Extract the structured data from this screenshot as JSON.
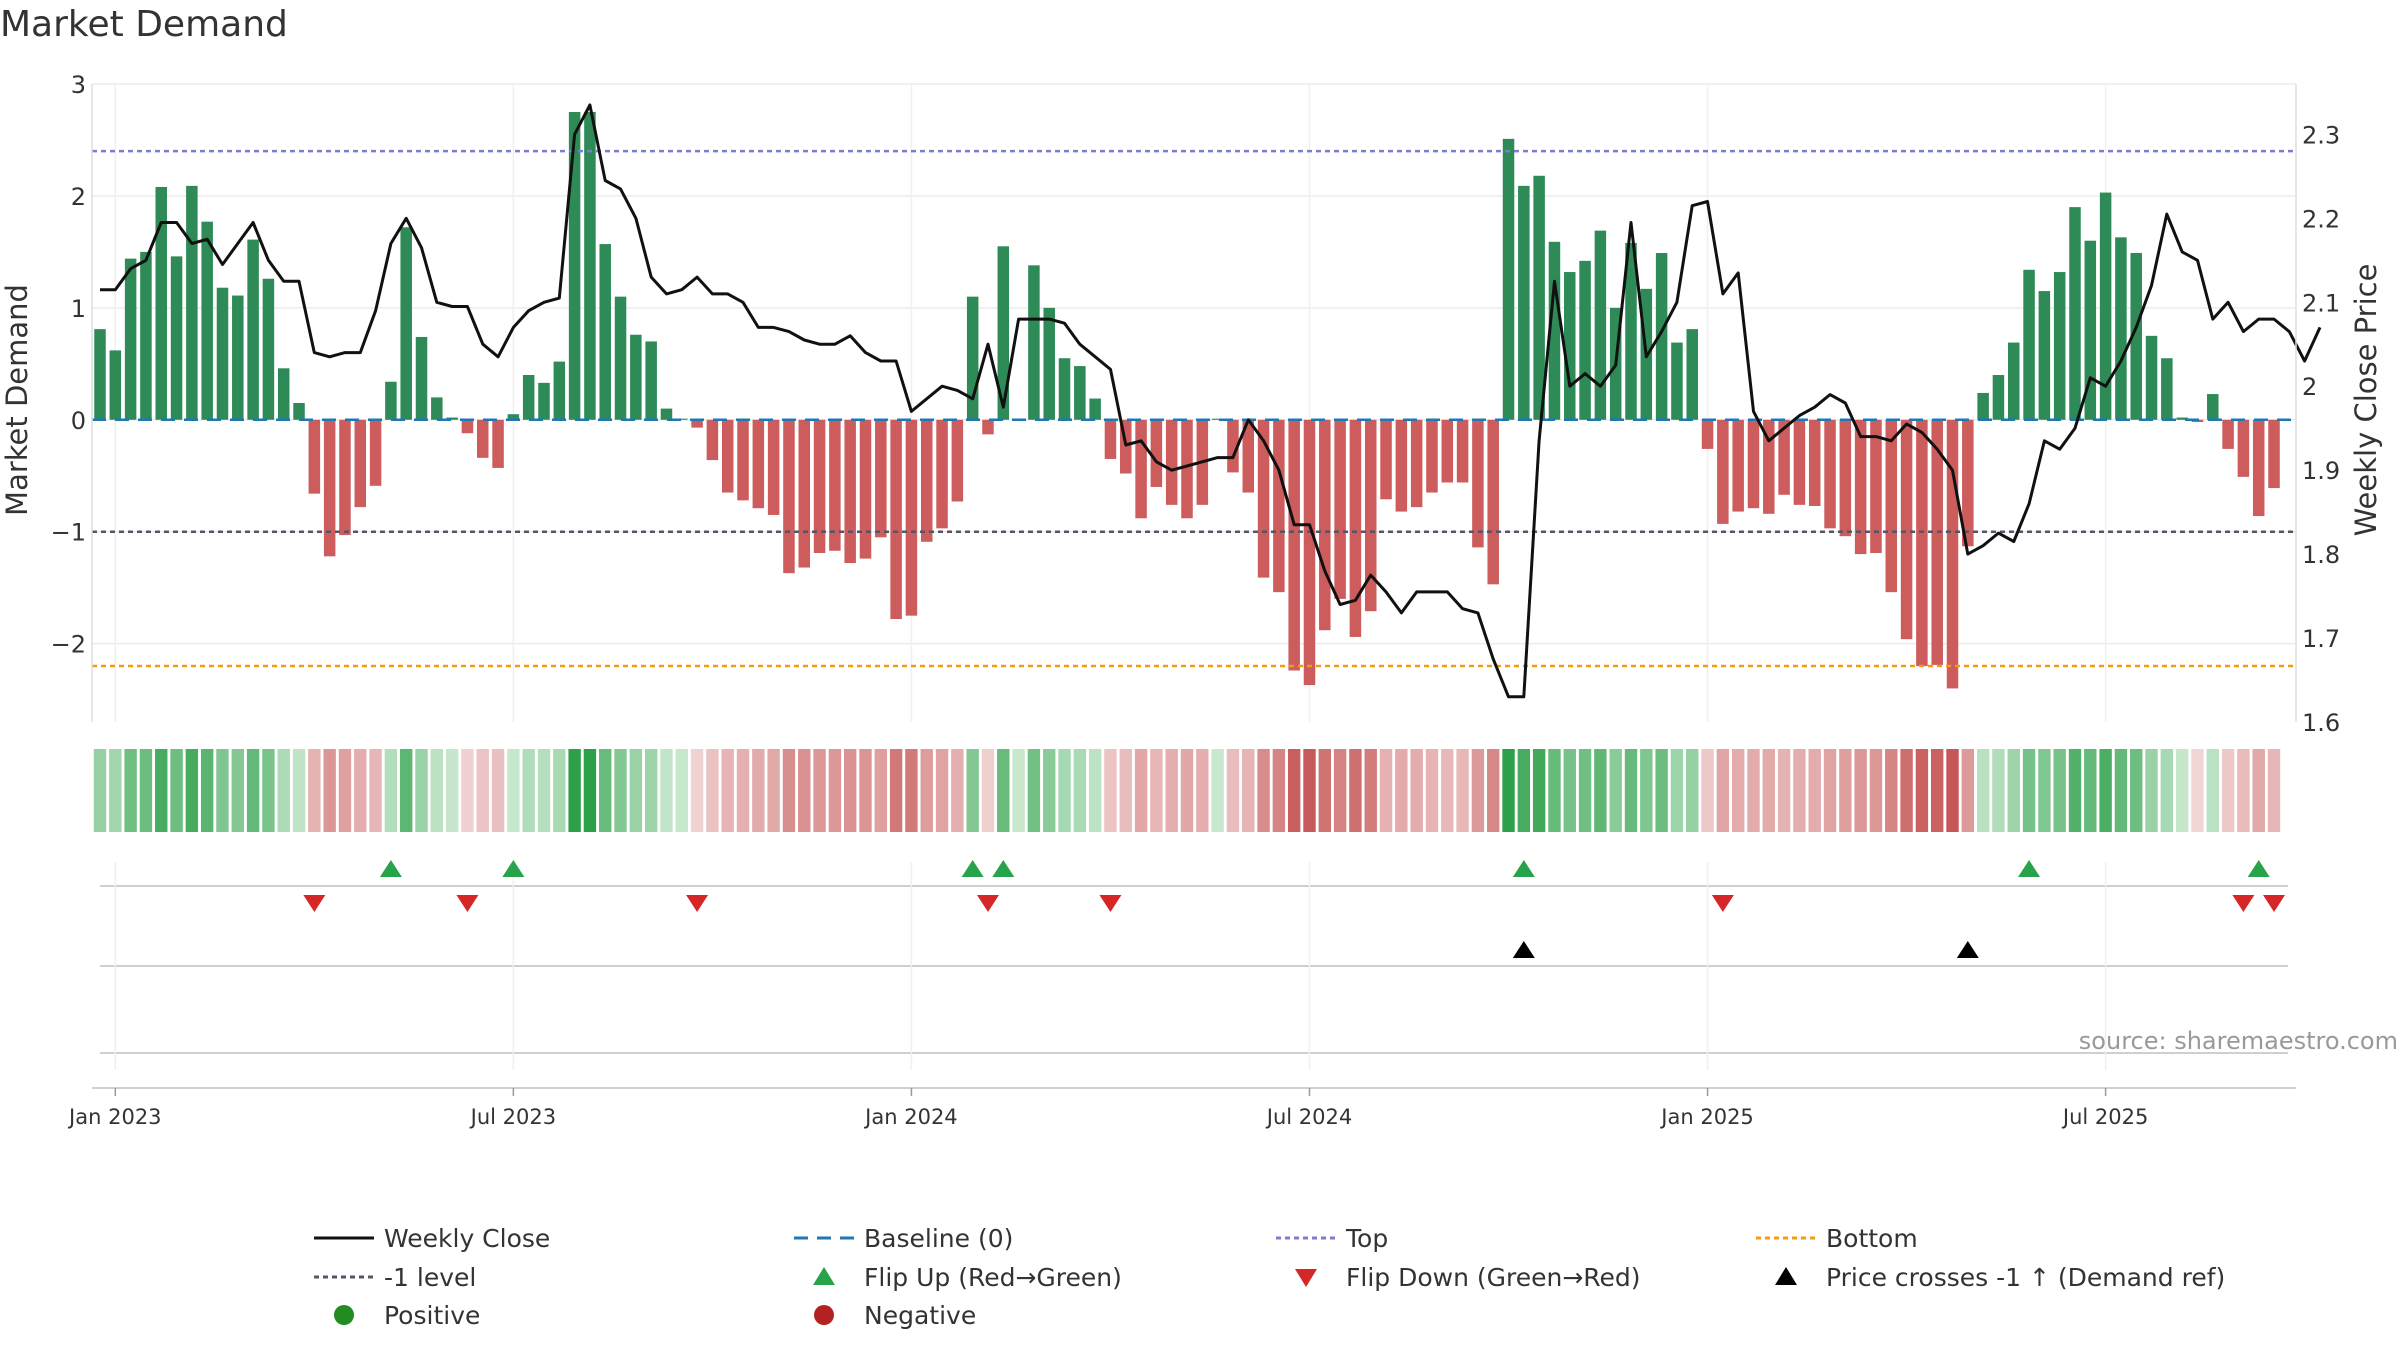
{
  "chart_data": {
    "type": "bar",
    "title": "Market Demand",
    "ylabel": "Market Demand",
    "y2label": "Weekly Close Price",
    "source": "source: sharemaestro.com",
    "ylim": [
      -2.7,
      3.0
    ],
    "y2lim": [
      1.6,
      2.36
    ],
    "yticks": [
      {
        "v": 3,
        "label": "3"
      },
      {
        "v": 2,
        "label": "2"
      },
      {
        "v": 1,
        "label": "1"
      },
      {
        "v": 0,
        "label": "0"
      },
      {
        "v": -1,
        "label": "−1"
      },
      {
        "v": -2,
        "label": "−2"
      }
    ],
    "y2ticks": [
      {
        "v": 2.3,
        "label": "2.3"
      },
      {
        "v": 2.2,
        "label": "2.2"
      },
      {
        "v": 2.1,
        "label": "2.1"
      },
      {
        "v": 2.0,
        "label": "2"
      },
      {
        "v": 1.9,
        "label": "1.9"
      },
      {
        "v": 1.8,
        "label": "1.8"
      },
      {
        "v": 1.7,
        "label": "1.7"
      },
      {
        "v": 1.6,
        "label": "1.6"
      }
    ],
    "xticks": [
      {
        "w": 1,
        "label": "Jan 2023"
      },
      {
        "w": 27,
        "label": "Jul 2023"
      },
      {
        "w": 53,
        "label": "Jan 2024"
      },
      {
        "w": 79,
        "label": "Jul 2024"
      },
      {
        "w": 105,
        "label": "Jan 2025"
      },
      {
        "w": 131,
        "label": "Jul 2025"
      }
    ],
    "levels": {
      "top": 2.4,
      "baseline": 0,
      "minus_one": -1,
      "bottom": -2.2
    },
    "demand": [
      0.81,
      0.62,
      1.44,
      1.5,
      2.08,
      1.46,
      2.09,
      1.77,
      1.18,
      1.11,
      1.61,
      1.26,
      0.46,
      0.15,
      -0.66,
      -1.22,
      -1.03,
      -0.78,
      -0.59,
      0.34,
      1.72,
      0.74,
      0.2,
      0.02,
      -0.12,
      -0.34,
      -0.43,
      0.05,
      0.4,
      0.33,
      0.52,
      2.75,
      2.75,
      1.57,
      1.1,
      0.76,
      0.7,
      0.1,
      0.01,
      -0.07,
      -0.36,
      -0.65,
      -0.72,
      -0.79,
      -0.85,
      -1.37,
      -1.32,
      -1.19,
      -1.17,
      -1.28,
      -1.24,
      -1.05,
      -1.78,
      -1.75,
      -1.09,
      -0.97,
      -0.73,
      1.1,
      -0.13,
      1.55,
      0.01,
      1.38,
      1.0,
      0.55,
      0.48,
      0.19,
      -0.35,
      -0.48,
      -0.88,
      -0.6,
      -0.76,
      -0.88,
      -0.76,
      0.01,
      -0.47,
      -0.65,
      -1.41,
      -1.54,
      -2.24,
      -2.37,
      -1.88,
      -1.6,
      -1.94,
      -1.71,
      -0.71,
      -0.82,
      -0.78,
      -0.65,
      -0.56,
      -0.56,
      -1.14,
      -1.47,
      2.51,
      2.09,
      2.18,
      1.59,
      1.32,
      1.42,
      1.69,
      1.0,
      1.58,
      1.17,
      1.49,
      0.69,
      0.81,
      -0.26,
      -0.93,
      -0.82,
      -0.79,
      -0.84,
      -0.67,
      -0.76,
      -0.77,
      -0.97,
      -1.04,
      -1.2,
      -1.19,
      -1.54,
      -1.96,
      -2.2,
      -2.19,
      -2.4,
      -1.13,
      0.24,
      0.4,
      0.69,
      1.34,
      1.15,
      1.32,
      1.9,
      1.6,
      2.03,
      1.63,
      1.49,
      0.75,
      0.55,
      0.02,
      -0.02,
      0.23,
      -0.26,
      -0.51,
      -0.86,
      -0.61
    ],
    "close": [
      2.115,
      2.115,
      2.14,
      2.15,
      2.195,
      2.195,
      2.17,
      2.175,
      2.145,
      2.17,
      2.195,
      2.15,
      2.125,
      2.125,
      2.04,
      2.035,
      2.04,
      2.04,
      2.09,
      2.17,
      2.2,
      2.165,
      2.1,
      2.095,
      2.095,
      2.05,
      2.035,
      2.07,
      2.09,
      2.1,
      2.105,
      2.3,
      2.335,
      2.245,
      2.235,
      2.2,
      2.13,
      2.11,
      2.115,
      2.13,
      2.11,
      2.11,
      2.1,
      2.07,
      2.07,
      2.065,
      2.055,
      2.05,
      2.05,
      2.06,
      2.04,
      2.03,
      2.03,
      1.97,
      1.985,
      2.0,
      1.995,
      1.985,
      2.05,
      1.975,
      2.08,
      2.08,
      2.08,
      2.075,
      2.05,
      2.035,
      2.02,
      1.93,
      1.935,
      1.91,
      1.9,
      1.905,
      1.91,
      1.915,
      1.915,
      1.96,
      1.935,
      1.9,
      1.835,
      1.835,
      1.78,
      1.74,
      1.745,
      1.775,
      1.755,
      1.73,
      1.755,
      1.755,
      1.755,
      1.735,
      1.73,
      1.675,
      1.63,
      1.63,
      1.935,
      2.125,
      2.0,
      2.015,
      2.0,
      2.025,
      2.195,
      2.035,
      2.065,
      2.1,
      2.215,
      2.22,
      2.11,
      2.135,
      1.97,
      1.935,
      1.95,
      1.965,
      1.975,
      1.99,
      1.98,
      1.94,
      1.94,
      1.935,
      1.955,
      1.945,
      1.925,
      1.9,
      1.8,
      1.81,
      1.825,
      1.815,
      1.86,
      1.935,
      1.925,
      1.95,
      2.01,
      2.0,
      2.03,
      2.07,
      2.12,
      2.205,
      2.16,
      2.15,
      2.08,
      2.1,
      2.065,
      2.08,
      2.08,
      2.065,
      2.03,
      2.07
    ],
    "flip_up_weeks": [
      19,
      27,
      57,
      59,
      93,
      126,
      141
    ],
    "flip_down_weeks": [
      14,
      24,
      39,
      58,
      66,
      106,
      140,
      142
    ],
    "price_cross_weeks": [
      93,
      122
    ],
    "legend": [
      {
        "key": "weekly-close",
        "label": "Weekly Close"
      },
      {
        "key": "baseline",
        "label": "Baseline (0)"
      },
      {
        "key": "top",
        "label": "Top"
      },
      {
        "key": "bottom",
        "label": "Bottom"
      },
      {
        "key": "minus-one",
        "label": "-1 level"
      },
      {
        "key": "flip-up",
        "label": "Flip Up (Red→Green)"
      },
      {
        "key": "flip-down",
        "label": "Flip Down (Green→Red)"
      },
      {
        "key": "price-cross",
        "label": "Price crosses -1 ↑ (Demand ref)"
      },
      {
        "key": "positive",
        "label": "Positive"
      },
      {
        "key": "negative",
        "label": "Negative"
      }
    ],
    "colors": {
      "pos": "#2e8b57",
      "neg": "#cd5c5c",
      "line": "#111111",
      "baseline": "#1f77b4",
      "top": "#7b7bd1",
      "bottom": "#f39c12",
      "minus_one": "#555566",
      "flip_up": "#27a34a",
      "flip_down": "#d62728",
      "cross": "#000000",
      "positive_dot": "#228b22",
      "negative_dot": "#b22222"
    }
  }
}
